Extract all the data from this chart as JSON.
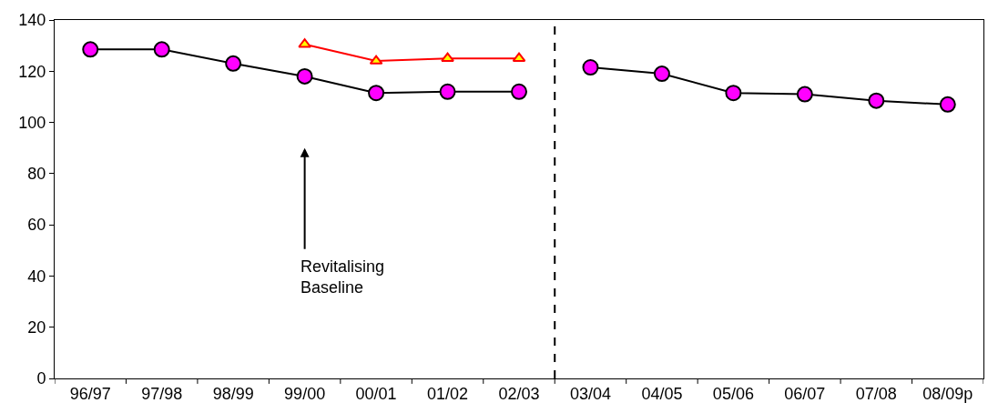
{
  "chart_data": {
    "type": "line",
    "categories": [
      "96/97",
      "97/98",
      "98/99",
      "99/00",
      "00/01",
      "01/02",
      "02/03",
      "03/04",
      "04/05",
      "05/06",
      "06/07",
      "07/08",
      "08/09p"
    ],
    "series": [
      {
        "color": "#000000",
        "marker": "circle",
        "colors": [
          "#ff00ff",
          "#ff00ff",
          "#ff00ff",
          "#ff00ff",
          "#ff00ff",
          "#ff00ff",
          "#ff00ff",
          "#ff00ff",
          "#ff00ff",
          "#ff00ff",
          "#ff00ff",
          "#ff00ff",
          "#ff00ff"
        ],
        "values": [
          128.5,
          128.5,
          123,
          118,
          111.5,
          112,
          112,
          null,
          null,
          null,
          null,
          null,
          null
        ]
      },
      {
        "color": "#000000",
        "marker": "circle",
        "colors": [
          "#ff00ff",
          "#ff00ff",
          "#ff00ff",
          "#ff00ff",
          "#ff00ff",
          "#ff00ff",
          "#ff00ff",
          "#ff00ff",
          "#ff00ff",
          "#ff00ff",
          "#ff00ff",
          "#ff00ff",
          "#ff00ff"
        ],
        "values": [
          null,
          null,
          null,
          null,
          null,
          null,
          null,
          121.5,
          119,
          111.5,
          111,
          108.5,
          107
        ]
      },
      {
        "color": "#ff0000",
        "marker": "triangle",
        "colors": [
          "#ffff00",
          "#ffff00",
          "#ffff00",
          "#ffff00",
          "#ffff00",
          "#ffff00",
          "#ffff00",
          "#ffff00",
          "#ffff00",
          "#ffff00",
          "#ffff00",
          "#ffff00",
          "#ffff00"
        ],
        "values": [
          null,
          null,
          null,
          130.5,
          124,
          125,
          125,
          null,
          null,
          null,
          null,
          null,
          null
        ]
      }
    ],
    "ylim": [
      0,
      140
    ],
    "yticks": [
      0,
      20,
      40,
      60,
      80,
      100,
      120,
      140
    ],
    "annotations": [
      "Revitalising\nBaseline"
    ]
  }
}
